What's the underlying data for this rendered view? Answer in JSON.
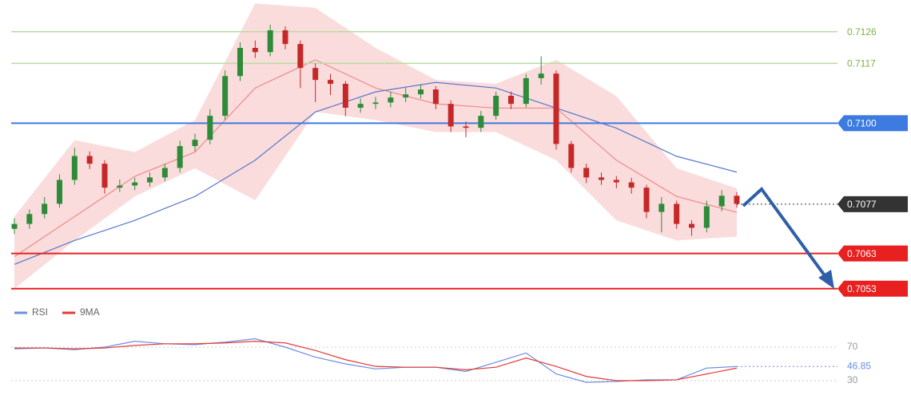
{
  "chart_data": [
    {
      "type": "candlestick",
      "xlim": [
        0,
        48
      ],
      "ylim": [
        0.705,
        0.7135
      ],
      "up_color": "#2e8b3a",
      "down_color": "#c62828",
      "open": [
        0.707,
        0.70714,
        0.70742,
        0.70771,
        0.70839,
        0.70907,
        0.70885,
        0.70817,
        0.70823,
        0.70832,
        0.70846,
        0.70873,
        0.70935,
        0.70953,
        0.71021,
        0.71134,
        0.71214,
        0.71202,
        0.71264,
        0.71225,
        0.71157,
        0.71123,
        0.71112,
        0.71044,
        0.71055,
        0.71059,
        0.71073,
        0.71082,
        0.71096,
        0.71055,
        0.70991,
        0.70987,
        0.71021,
        0.71078,
        0.71055,
        0.71128,
        0.71141,
        0.70941,
        0.70873,
        0.70846,
        0.70839,
        0.70832,
        0.70817,
        0.70748,
        0.70771,
        0.70714,
        0.70703,
        0.70764,
        0.70794
      ],
      "high": [
        0.7073,
        0.70755,
        0.7079,
        0.70855,
        0.7093,
        0.7092,
        0.70895,
        0.7084,
        0.70845,
        0.7086,
        0.70885,
        0.7095,
        0.7097,
        0.7104,
        0.7115,
        0.7123,
        0.71235,
        0.7128,
        0.71275,
        0.71235,
        0.7117,
        0.7114,
        0.7112,
        0.7107,
        0.71075,
        0.7109,
        0.711,
        0.7111,
        0.71105,
        0.71065,
        0.71005,
        0.71035,
        0.7109,
        0.7109,
        0.7114,
        0.7119,
        0.7115,
        0.7095,
        0.70885,
        0.7086,
        0.7085,
        0.70845,
        0.70825,
        0.7079,
        0.7078,
        0.70725,
        0.7078,
        0.7081,
        0.70805
      ],
      "low": [
        0.70685,
        0.707,
        0.7073,
        0.7076,
        0.70825,
        0.7087,
        0.708,
        0.70805,
        0.7081,
        0.7082,
        0.70835,
        0.7086,
        0.7092,
        0.7094,
        0.7101,
        0.7112,
        0.71185,
        0.7119,
        0.7121,
        0.711,
        0.7106,
        0.7108,
        0.7102,
        0.7103,
        0.7104,
        0.71045,
        0.7106,
        0.7107,
        0.7104,
        0.70975,
        0.7096,
        0.70975,
        0.7101,
        0.7104,
        0.71045,
        0.7111,
        0.70925,
        0.7086,
        0.7083,
        0.70825,
        0.70815,
        0.708,
        0.7073,
        0.7069,
        0.707,
        0.7068,
        0.7069,
        0.7075,
        0.7076
      ],
      "close": [
        0.70714,
        0.70742,
        0.70771,
        0.70839,
        0.70907,
        0.70885,
        0.70817,
        0.70823,
        0.70832,
        0.70846,
        0.70873,
        0.70935,
        0.70953,
        0.71021,
        0.71134,
        0.71214,
        0.71202,
        0.71264,
        0.71225,
        0.71157,
        0.71123,
        0.71112,
        0.71044,
        0.71055,
        0.71059,
        0.71073,
        0.71082,
        0.71096,
        0.71055,
        0.70991,
        0.70987,
        0.71021,
        0.71078,
        0.71055,
        0.71128,
        0.71141,
        0.70941,
        0.70873,
        0.70846,
        0.70839,
        0.70832,
        0.70817,
        0.70748,
        0.70771,
        0.70714,
        0.70703,
        0.70764,
        0.70794,
        0.70771
      ],
      "overlays": [
        {
          "kind": "band",
          "color": "#f9c4c4",
          "x": [
            0,
            4,
            8,
            12,
            16,
            20,
            24,
            28,
            32,
            36,
            40,
            44,
            48
          ],
          "upper": [
            0.70735,
            0.70952,
            0.70918,
            0.71009,
            0.7134,
            0.71328,
            0.71214,
            0.71123,
            0.71112,
            0.7118,
            0.71077,
            0.70872,
            0.70815
          ],
          "lower": [
            0.7053,
            0.70667,
            0.70792,
            0.70872,
            0.70781,
            0.71032,
            0.71009,
            0.70975,
            0.70975,
            0.70895,
            0.70724,
            0.70667,
            0.70678
          ]
        },
        {
          "kind": "line",
          "color": "#ef8a8a",
          "x": [
            0,
            4,
            8,
            12,
            16,
            20,
            24,
            28,
            32,
            36,
            40,
            44,
            48
          ],
          "values": [
            0.70621,
            0.70735,
            0.70849,
            0.70918,
            0.711,
            0.7118,
            0.711,
            0.71055,
            0.71043,
            0.71043,
            0.70895,
            0.70792,
            0.70747
          ]
        },
        {
          "kind": "line",
          "color": "#5577cc",
          "x": [
            0,
            4,
            8,
            12,
            16,
            20,
            24,
            28,
            32,
            36,
            40,
            44,
            48
          ],
          "values": [
            0.70599,
            0.70667,
            0.70724,
            0.70792,
            0.70895,
            0.71032,
            0.71089,
            0.71116,
            0.711,
            0.71043,
            0.70986,
            0.70906,
            0.70861
          ]
        }
      ],
      "levels": [
        {
          "value": 0.7126,
          "color": "#b8dca0",
          "text_color": "#7cb342"
        },
        {
          "value": 0.7117,
          "color": "#b8dca0",
          "text_color": "#7cb342"
        },
        {
          "value": 0.71,
          "label": "0.7100",
          "color": "#3d7be0",
          "box": true
        },
        {
          "value": 0.7077,
          "color": "#333333",
          "box": true,
          "style": "dotted"
        },
        {
          "value": 0.7063,
          "color": "#e82020",
          "box": true
        },
        {
          "value": 0.7053,
          "color": "#e82020",
          "box": true
        }
      ]
    },
    {
      "type": "line",
      "xlim": [
        0,
        48
      ],
      "ylim": [
        10,
        100
      ],
      "yticks": [
        70,
        30
      ],
      "series": [
        {
          "name": "RSI",
          "color": "#6a8ee0",
          "x": [
            0,
            2,
            4,
            6,
            8,
            10,
            12,
            14,
            16,
            18,
            20,
            22,
            24,
            26,
            28,
            30,
            32,
            34,
            36,
            38,
            40,
            42,
            44,
            46,
            48
          ],
          "values": [
            68,
            69,
            67,
            70,
            77,
            74,
            73,
            76,
            80,
            70,
            58,
            50,
            44,
            46,
            46,
            41,
            52,
            63,
            38,
            28,
            29,
            31,
            31,
            45,
            46.85
          ]
        },
        {
          "name": "9MA",
          "color": "#e53935",
          "x": [
            0,
            2,
            4,
            6,
            8,
            10,
            12,
            14,
            16,
            18,
            20,
            22,
            24,
            26,
            28,
            30,
            32,
            34,
            36,
            38,
            40,
            42,
            44,
            46,
            48
          ],
          "values": [
            69,
            69,
            68,
            69,
            72,
            74,
            74,
            75,
            77,
            75,
            66,
            55,
            47,
            46,
            46,
            43,
            46,
            57,
            47,
            35,
            30,
            30,
            31,
            38,
            45
          ]
        }
      ]
    }
  ]
}
